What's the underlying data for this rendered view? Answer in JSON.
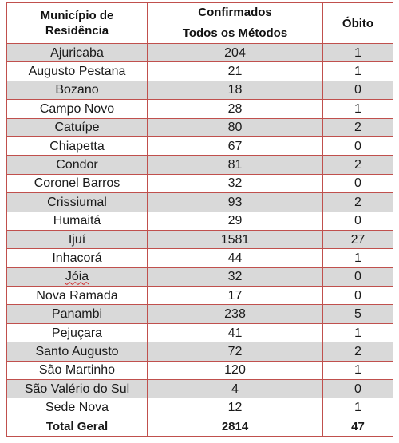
{
  "headers": {
    "municipio_line1": "Município de",
    "municipio_line2": "Residência",
    "confirmados": "Confirmados",
    "todos_metodos": "Todos os Métodos",
    "obito": "Óbito"
  },
  "rows": [
    {
      "municipio": "Ajuricaba",
      "confirmados": "204",
      "obito": "1",
      "shaded": true
    },
    {
      "municipio": "Augusto Pestana",
      "confirmados": "21",
      "obito": "1",
      "shaded": false
    },
    {
      "municipio": "Bozano",
      "confirmados": "18",
      "obito": "0",
      "shaded": true
    },
    {
      "municipio": "Campo Novo",
      "confirmados": "28",
      "obito": "1",
      "shaded": false
    },
    {
      "municipio": "Catuípe",
      "confirmados": "80",
      "obito": "2",
      "shaded": true
    },
    {
      "municipio": "Chiapetta",
      "confirmados": "67",
      "obito": "0",
      "shaded": false
    },
    {
      "municipio": "Condor",
      "confirmados": "81",
      "obito": "2",
      "shaded": true
    },
    {
      "municipio": "Coronel Barros",
      "confirmados": "32",
      "obito": "0",
      "shaded": false
    },
    {
      "municipio": "Crissiumal",
      "confirmados": "93",
      "obito": "2",
      "shaded": true
    },
    {
      "municipio": "Humaitá",
      "confirmados": "29",
      "obito": "0",
      "shaded": false
    },
    {
      "municipio": "Ijuí",
      "confirmados": "1581",
      "obito": "27",
      "shaded": true
    },
    {
      "municipio": "Inhacorá",
      "confirmados": "44",
      "obito": "1",
      "shaded": false
    },
    {
      "municipio": "Jóia",
      "confirmados": "32",
      "obito": "0",
      "shaded": true,
      "spellcheck": true
    },
    {
      "municipio": "Nova Ramada",
      "confirmados": "17",
      "obito": "0",
      "shaded": false
    },
    {
      "municipio": "Panambi",
      "confirmados": "238",
      "obito": "5",
      "shaded": true
    },
    {
      "municipio": "Pejuçara",
      "confirmados": "41",
      "obito": "1",
      "shaded": false
    },
    {
      "municipio": "Santo Augusto",
      "confirmados": "72",
      "obito": "2",
      "shaded": true
    },
    {
      "municipio": "São Martinho",
      "confirmados": "120",
      "obito": "1",
      "shaded": false
    },
    {
      "municipio": "São Valério do Sul",
      "confirmados": "4",
      "obito": "0",
      "shaded": true
    },
    {
      "municipio": "Sede Nova",
      "confirmados": "12",
      "obito": "1",
      "shaded": false
    }
  ],
  "total": {
    "label": "Total Geral",
    "confirmados": "2814",
    "obito": "47"
  },
  "colors": {
    "border": "#c0504d",
    "shade": "#d9d9d9",
    "spellcheck_underline": "#d02020"
  }
}
